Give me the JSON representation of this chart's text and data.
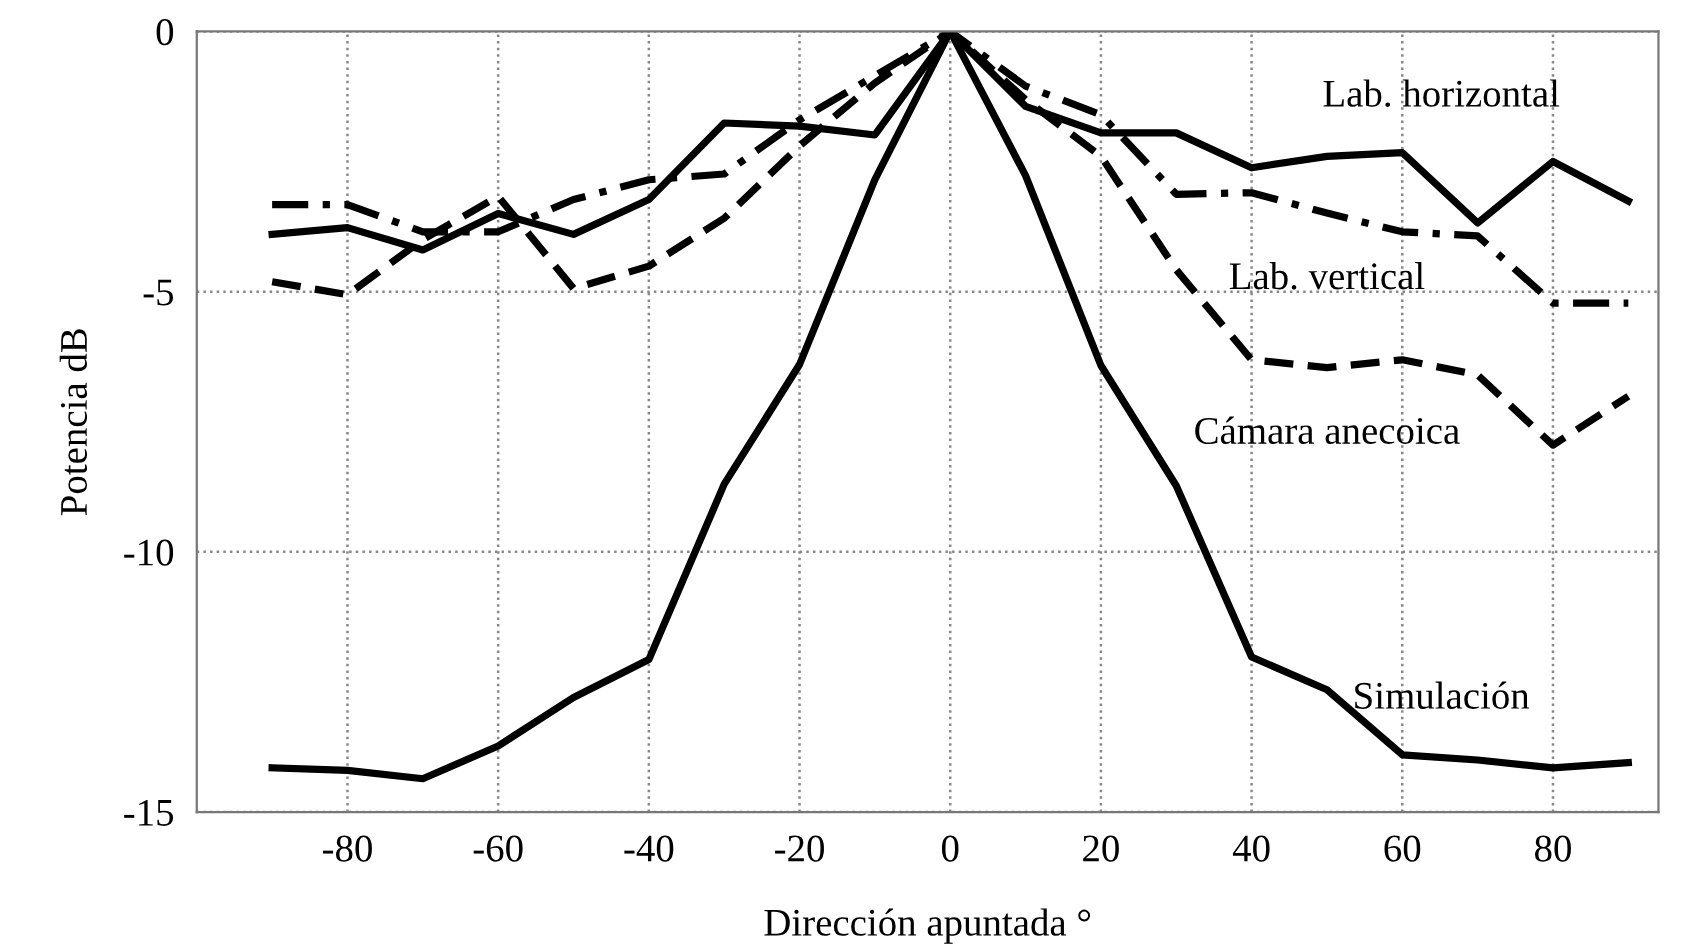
{
  "chart_data": {
    "type": "line",
    "xlabel": "Dirección apuntada °",
    "ylabel": "Potencia dB",
    "x": [
      -90,
      -80,
      -70,
      -60,
      -50,
      -40,
      -30,
      -20,
      -10,
      0,
      10,
      20,
      30,
      40,
      50,
      60,
      70,
      80,
      90
    ],
    "series": [
      {
        "name": "Lab. horizontal",
        "color": "#000000",
        "line_style": "solid",
        "values": [
          -3.9,
          -3.77,
          -4.2,
          -3.5,
          -3.9,
          -3.23,
          -1.76,
          -1.82,
          -1.99,
          0,
          -1.44,
          -1.95,
          -1.95,
          -2.62,
          -2.4,
          -2.33,
          -3.68,
          -2.5,
          -3.26
        ]
      },
      {
        "name": "Lab. vertical",
        "color": "#000000",
        "line_style": "dashdot",
        "values": [
          -3.33,
          -3.33,
          -3.85,
          -3.85,
          -3.23,
          -2.85,
          -2.74,
          -1.7,
          -0.85,
          0,
          -1.05,
          -1.6,
          -3.13,
          -3.1,
          -3.49,
          -3.85,
          -3.93,
          -5.22,
          -5.22
        ]
      },
      {
        "name": "Cámara anecoica",
        "color": "#000000",
        "line_style": "dashed",
        "values": [
          -4.81,
          -5.06,
          -4.0,
          -3.17,
          -4.94,
          -4.51,
          -3.59,
          -2.2,
          -0.99,
          0,
          -1.31,
          -2.4,
          -4.58,
          -6.31,
          -6.46,
          -6.31,
          -6.6,
          -7.95,
          -7.01
        ]
      },
      {
        "name": "Simulación",
        "color": "#000000",
        "line_style": "solid",
        "values": [
          -14.15,
          -14.2,
          -14.36,
          -13.73,
          -12.8,
          -12.07,
          -8.7,
          -6.4,
          -2.85,
          0,
          -2.77,
          -6.42,
          -8.73,
          -12.02,
          -12.65,
          -13.9,
          -14.0,
          -14.15,
          -14.05
        ]
      }
    ],
    "xlim": [
      -100,
      94
    ],
    "ylim": [
      -15,
      0
    ],
    "xticks": [
      -80,
      -60,
      -40,
      -20,
      0,
      20,
      40,
      60,
      80
    ],
    "yticks": [
      -15,
      -10,
      -5,
      0
    ],
    "grid": true,
    "marker": "none"
  }
}
